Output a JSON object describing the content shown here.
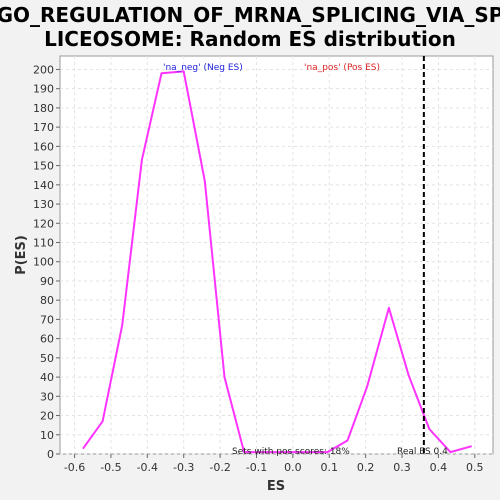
{
  "chart_data": {
    "type": "line",
    "title_line1": "GO_REGULATION_OF_MRNA_SPLICING_VIA_SP",
    "title_line2": "LICEOSOME: Random ES distribution",
    "xlabel": "ES",
    "ylabel": "P(ES)",
    "xlim": [
      -0.64,
      0.55
    ],
    "ylim": [
      0,
      207
    ],
    "x_ticks": [
      "-0.6",
      "-0.5",
      "-0.4",
      "-0.3",
      "-0.2",
      "-0.1",
      "0.0",
      "0.1",
      "0.2",
      "0.3",
      "0.4",
      "0.5"
    ],
    "y_ticks": [
      "0",
      "10",
      "20",
      "30",
      "40",
      "50",
      "60",
      "70",
      "80",
      "90",
      "100",
      "110",
      "120",
      "130",
      "140",
      "150",
      "160",
      "170",
      "180",
      "190",
      "200"
    ],
    "grid": true,
    "series": [
      {
        "name": "",
        "color": "#ff33ff",
        "points": [
          {
            "x": -0.576,
            "y": 3
          },
          {
            "x": -0.523,
            "y": 17
          },
          {
            "x": -0.469,
            "y": 67
          },
          {
            "x": -0.415,
            "y": 153
          },
          {
            "x": -0.361,
            "y": 198
          },
          {
            "x": -0.3,
            "y": 199
          },
          {
            "x": -0.242,
            "y": 142
          },
          {
            "x": -0.188,
            "y": 40
          },
          {
            "x": -0.134,
            "y": 1
          },
          {
            "x": 0.095,
            "y": 1
          },
          {
            "x": 0.15,
            "y": 7
          },
          {
            "x": 0.204,
            "y": 35
          },
          {
            "x": 0.264,
            "y": 76
          },
          {
            "x": 0.318,
            "y": 41
          },
          {
            "x": 0.375,
            "y": 13
          },
          {
            "x": 0.433,
            "y": 1
          },
          {
            "x": 0.49,
            "y": 4
          }
        ]
      }
    ],
    "real_es": 0.36,
    "legend_neg": "'na_neg' (Neg ES)",
    "legend_pos": "'na_pos' (Pos ES)",
    "legend_neg_color": "#2222dd",
    "legend_pos_color": "#dd2222",
    "anno_pos_scores": "Sets with pos scores: 18%",
    "anno_real_es": "Real ES 0.4"
  }
}
